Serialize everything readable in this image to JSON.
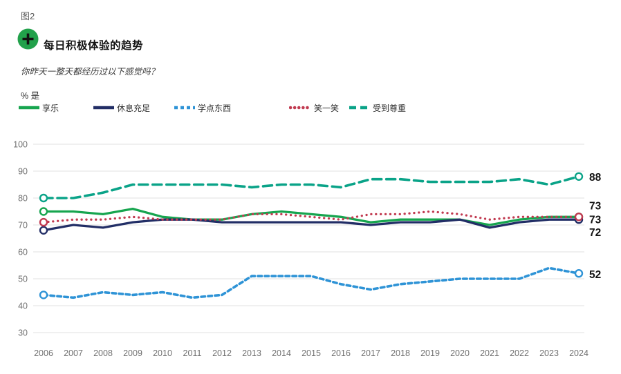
{
  "header": {
    "figure_label": "图2",
    "title": "每日积极体验的趋势",
    "subtitle": "你昨天一整天都经历过以下感觉吗？",
    "unit_label": "% 是",
    "badge_icon": "plus-icon",
    "badge_color": "#22a14b",
    "badge_glyph_color": "#111111"
  },
  "colors": {
    "grid": "#e2e2e2",
    "axis_text": "#707070",
    "end_label_text": "#141414",
    "marker_fill": "#ffffff"
  },
  "chart_data": {
    "type": "line",
    "title": "每日积极体验的趋势",
    "xlabel": "",
    "ylabel": "% 是",
    "x": [
      2006,
      2007,
      2008,
      2009,
      2010,
      2011,
      2012,
      2013,
      2014,
      2015,
      2016,
      2017,
      2018,
      2019,
      2020,
      2021,
      2022,
      2023,
      2024
    ],
    "ylim": [
      30,
      100
    ],
    "yticks": [
      100,
      90,
      80,
      70,
      60,
      50,
      40,
      30
    ],
    "grid": true,
    "legend_position": "top",
    "series": [
      {
        "name": "享乐",
        "color": "#17a54f",
        "style": "solid",
        "values": [
          75,
          75,
          74,
          76,
          73,
          72,
          72,
          74,
          75,
          74,
          73,
          71,
          72,
          72,
          72,
          70,
          72,
          73,
          73
        ],
        "end_label": "73"
      },
      {
        "name": "休息充足",
        "color": "#222e66",
        "style": "solid",
        "values": [
          68,
          70,
          69,
          71,
          72,
          72,
          71,
          71,
          71,
          71,
          71,
          70,
          71,
          71,
          72,
          69,
          71,
          72,
          72
        ],
        "end_label": "72"
      },
      {
        "name": "学点东西",
        "color": "#2e93d6",
        "style": "dashed-short",
        "values": [
          44,
          43,
          45,
          44,
          45,
          43,
          44,
          51,
          51,
          51,
          48,
          46,
          48,
          49,
          50,
          50,
          50,
          54,
          52
        ],
        "end_label": "52"
      },
      {
        "name": "笑一笑",
        "color": "#c13a50",
        "style": "dotted",
        "values": [
          71,
          72,
          72,
          73,
          72,
          72,
          72,
          74,
          74,
          73,
          72,
          74,
          74,
          75,
          74,
          72,
          73,
          73,
          73
        ],
        "end_label": "73"
      },
      {
        "name": "受到尊重",
        "color": "#0aa388",
        "style": "dashed-long",
        "values": [
          80,
          80,
          82,
          85,
          85,
          85,
          85,
          84,
          85,
          85,
          84,
          87,
          87,
          86,
          86,
          86,
          87,
          85,
          88
        ],
        "end_label": "88"
      }
    ]
  }
}
